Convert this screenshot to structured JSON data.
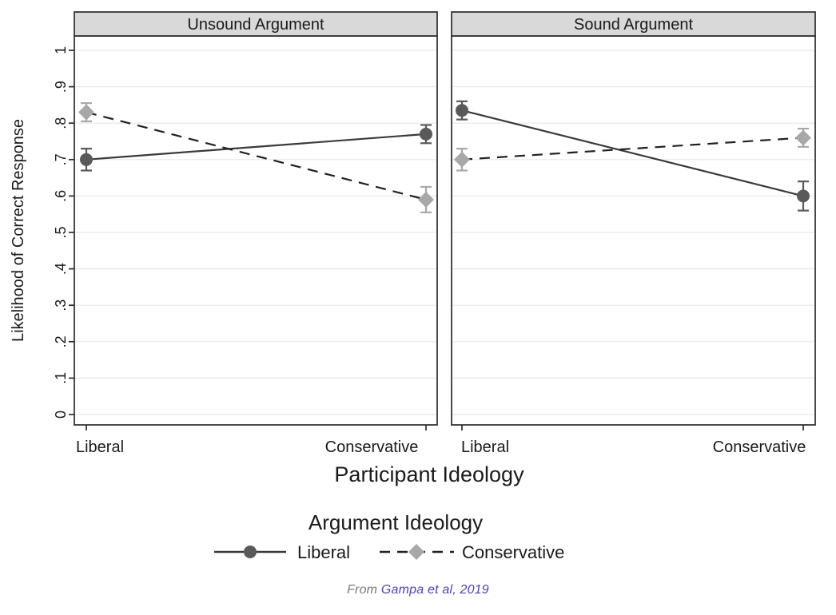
{
  "figure": {
    "caption_prefix": "From ",
    "caption_link": "Gampa et al, 2019",
    "caption_prefix_color": "#7a7a7a",
    "caption_link_color": "#4b43b5"
  },
  "chart_data": {
    "type": "line",
    "title": "",
    "xlabel": "Participant Ideology",
    "ylabel": "Likelihood of Correct Response",
    "legend_title": "Argument Ideology",
    "legend_position": "bottom",
    "grid": true,
    "ylim": [
      0,
      1
    ],
    "yticks": [
      0,
      0.1,
      0.2,
      0.3,
      0.4,
      0.5,
      0.6,
      0.7,
      0.8,
      0.9,
      1
    ],
    "ytick_labels": [
      "0",
      ".1",
      ".2",
      ".3",
      ".4",
      ".5",
      ".6",
      ".7",
      ".8",
      ".9",
      "1"
    ],
    "x_categories": [
      "Liberal",
      "Conservative"
    ],
    "panels": [
      {
        "title": "Unsound Argument",
        "series": [
          {
            "name": "Liberal",
            "values": [
              0.7,
              0.77
            ],
            "errors": [
              0.03,
              0.025
            ]
          },
          {
            "name": "Conservative",
            "values": [
              0.83,
              0.59
            ],
            "errors": [
              0.025,
              0.035
            ]
          }
        ]
      },
      {
        "title": "Sound Argument",
        "series": [
          {
            "name": "Liberal",
            "values": [
              0.835,
              0.6
            ],
            "errors": [
              0.025,
              0.04
            ]
          },
          {
            "name": "Conservative",
            "values": [
              0.7,
              0.76
            ],
            "errors": [
              0.03,
              0.025
            ]
          }
        ]
      }
    ],
    "series_styles": [
      {
        "name": "Liberal",
        "marker": "circle",
        "line": "solid",
        "color": "#595959",
        "line_color": "#3a3a3a"
      },
      {
        "name": "Conservative",
        "marker": "diamond",
        "line": "dashed",
        "color": "#a8a8a8",
        "line_color": "#212121"
      }
    ],
    "colors": {
      "frame": "#2b2b2b",
      "header_bg": "#d9d9d9",
      "grid": "#e7e7e7",
      "text": "#1a1a1a"
    }
  }
}
